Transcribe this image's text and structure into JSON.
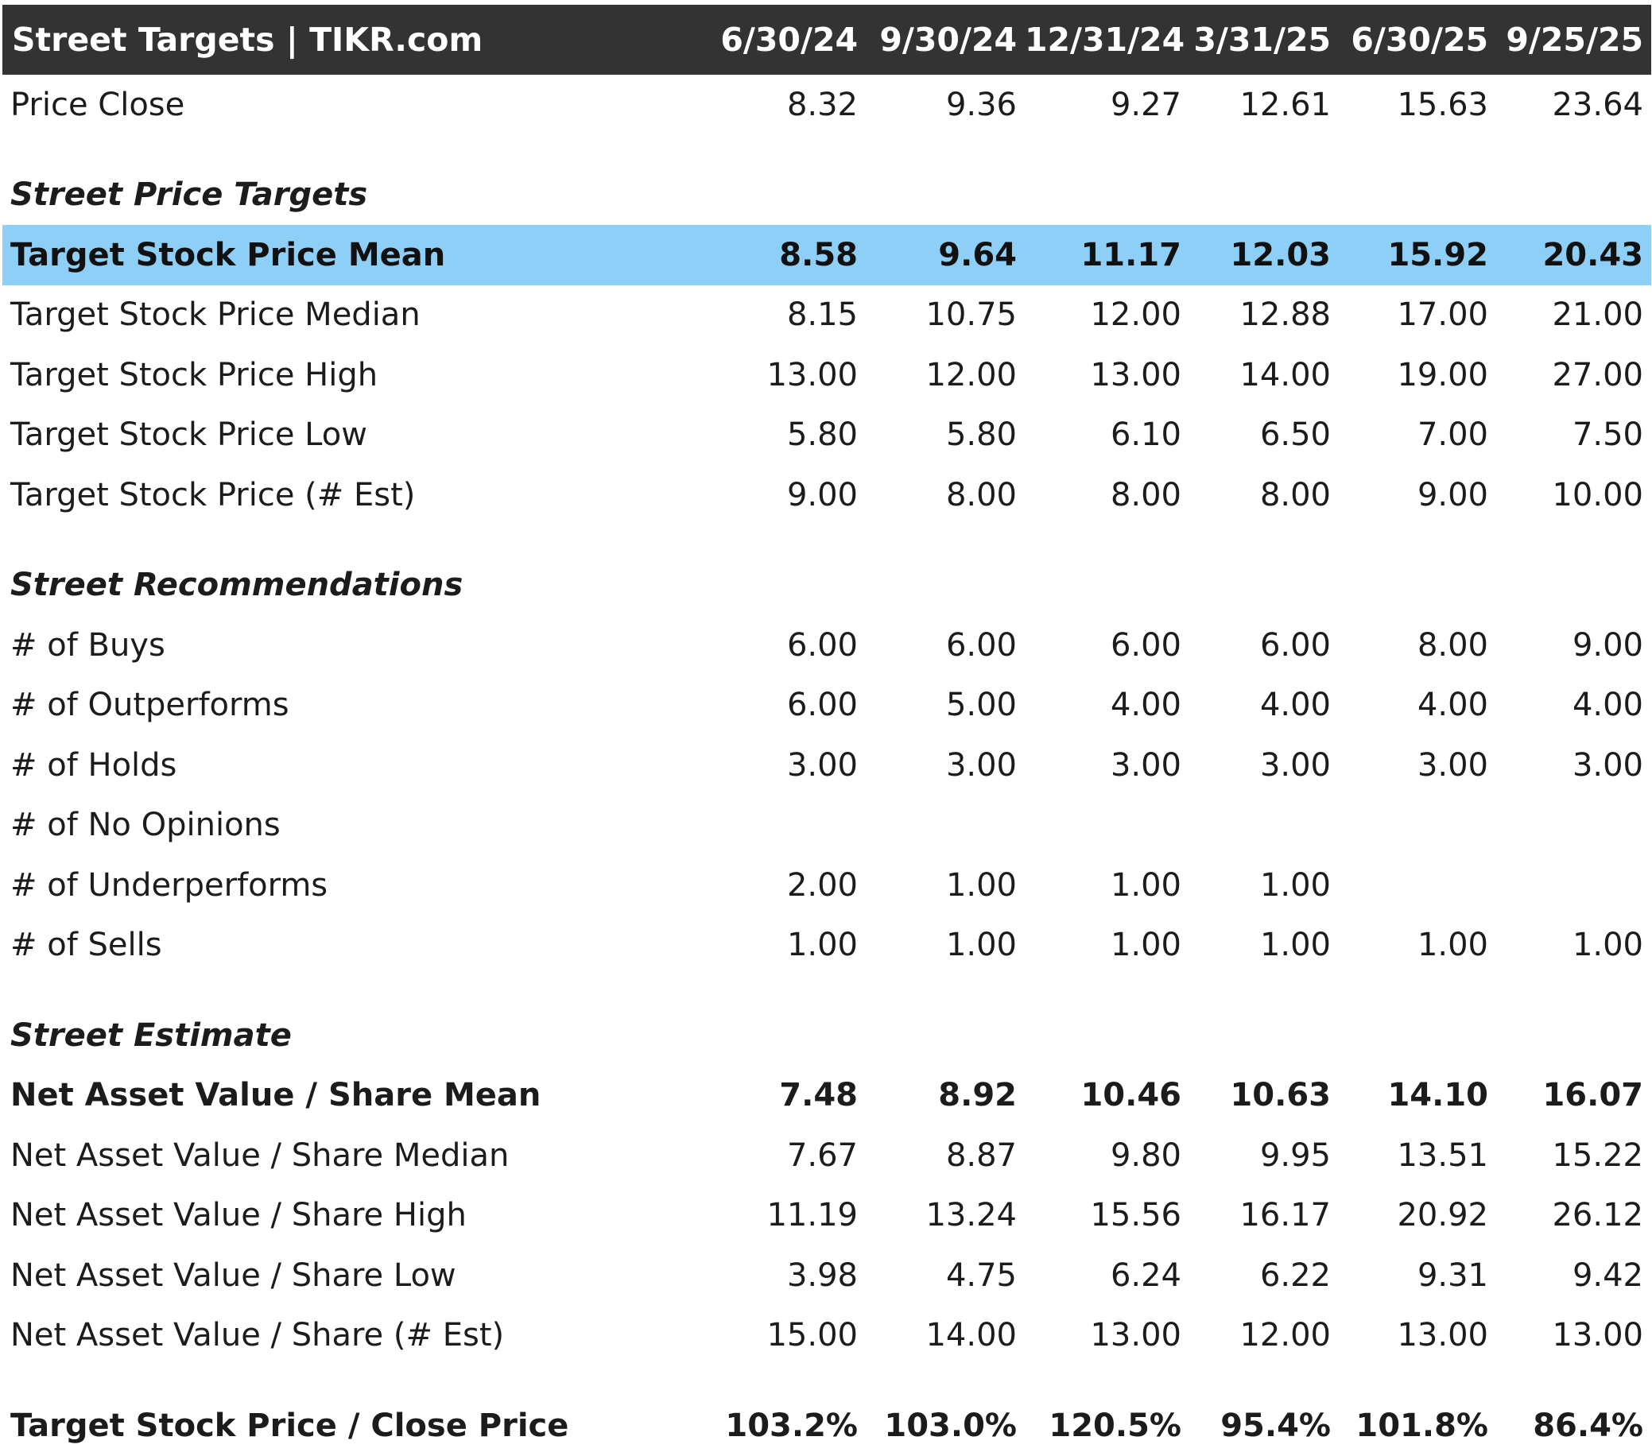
{
  "header": {
    "title": "Street Targets | TIKR.com",
    "dates": [
      "6/30/24",
      "9/30/24",
      "12/31/24",
      "3/31/25",
      "6/30/25",
      "9/25/25"
    ]
  },
  "rows": {
    "price_close": {
      "label": "Price Close",
      "values": [
        "8.32",
        "9.36",
        "9.27",
        "12.61",
        "15.63",
        "23.64"
      ]
    },
    "section_price_targets": {
      "label": "Street Price Targets"
    },
    "target_mean": {
      "label": "Target Stock Price Mean",
      "values": [
        "8.58",
        "9.64",
        "11.17",
        "12.03",
        "15.92",
        "20.43"
      ]
    },
    "target_median": {
      "label": "Target Stock Price Median",
      "values": [
        "8.15",
        "10.75",
        "12.00",
        "12.88",
        "17.00",
        "21.00"
      ]
    },
    "target_high": {
      "label": "Target Stock Price High",
      "values": [
        "13.00",
        "12.00",
        "13.00",
        "14.00",
        "19.00",
        "27.00"
      ]
    },
    "target_low": {
      "label": "Target Stock Price Low",
      "values": [
        "5.80",
        "5.80",
        "6.10",
        "6.50",
        "7.00",
        "7.50"
      ]
    },
    "target_est": {
      "label": "Target Stock Price (# Est)",
      "values": [
        "9.00",
        "8.00",
        "8.00",
        "8.00",
        "9.00",
        "10.00"
      ]
    },
    "section_recommendations": {
      "label": "Street Recommendations"
    },
    "buys": {
      "label": "# of Buys",
      "values": [
        "6.00",
        "6.00",
        "6.00",
        "6.00",
        "8.00",
        "9.00"
      ]
    },
    "outperforms": {
      "label": "# of Outperforms",
      "values": [
        "6.00",
        "5.00",
        "4.00",
        "4.00",
        "4.00",
        "4.00"
      ]
    },
    "holds": {
      "label": "# of Holds",
      "values": [
        "3.00",
        "3.00",
        "3.00",
        "3.00",
        "3.00",
        "3.00"
      ]
    },
    "no_opinions": {
      "label": "# of No Opinions",
      "values": [
        "",
        "",
        "",
        "",
        "",
        ""
      ]
    },
    "underperforms": {
      "label": "# of Underperforms",
      "values": [
        "2.00",
        "1.00",
        "1.00",
        "1.00",
        "",
        ""
      ]
    },
    "sells": {
      "label": "# of Sells",
      "values": [
        "1.00",
        "1.00",
        "1.00",
        "1.00",
        "1.00",
        "1.00"
      ]
    },
    "section_estimate": {
      "label": "Street Estimate"
    },
    "nav_mean": {
      "label": "Net Asset Value / Share Mean",
      "values": [
        "7.48",
        "8.92",
        "10.46",
        "10.63",
        "14.10",
        "16.07"
      ]
    },
    "nav_median": {
      "label": "Net Asset Value / Share Median",
      "values": [
        "7.67",
        "8.87",
        "9.80",
        "9.95",
        "13.51",
        "15.22"
      ]
    },
    "nav_high": {
      "label": "Net Asset Value / Share High",
      "values": [
        "11.19",
        "13.24",
        "15.56",
        "16.17",
        "20.92",
        "26.12"
      ]
    },
    "nav_low": {
      "label": "Net Asset Value / Share Low",
      "values": [
        "3.98",
        "4.75",
        "6.24",
        "6.22",
        "9.31",
        "9.42"
      ]
    },
    "nav_est": {
      "label": "Net Asset Value / Share (# Est)",
      "values": [
        "15.00",
        "14.00",
        "13.00",
        "12.00",
        "13.00",
        "13.00"
      ]
    },
    "target_close_ratio": {
      "label": "Target Stock Price / Close Price",
      "values": [
        "103.2%",
        "103.0%",
        "120.5%",
        "95.4%",
        "101.8%",
        "86.4%"
      ]
    }
  },
  "colors": {
    "header_background": "#333333",
    "highlight_row": "#8ecff7"
  }
}
